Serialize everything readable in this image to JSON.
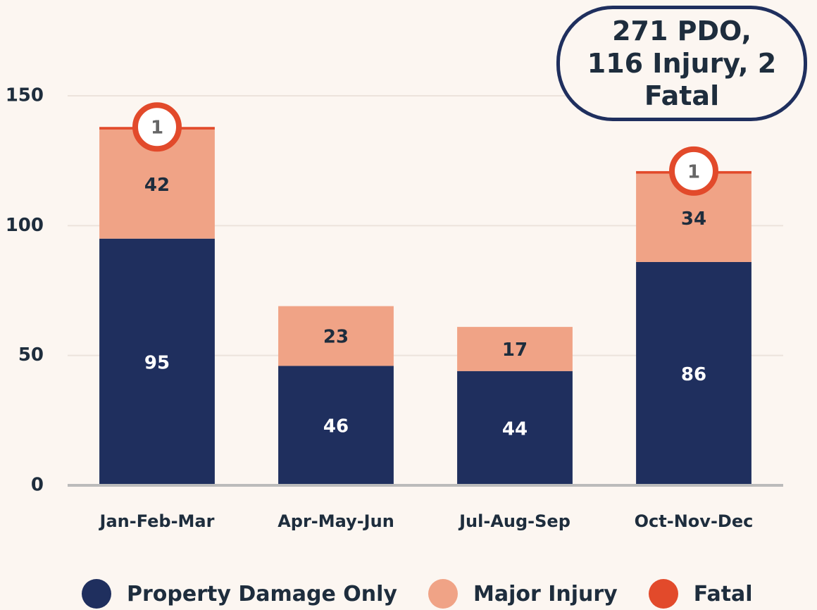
{
  "chart_data": {
    "type": "stacked_bar",
    "categories": [
      "Jan-Feb-Mar",
      "Apr-May-Jun",
      "Jul-Aug-Sep",
      "Oct-Nov-Dec"
    ],
    "series": [
      {
        "name": "Property Damage Only",
        "color": "#1f2f5e",
        "values": [
          95,
          46,
          44,
          86
        ]
      },
      {
        "name": "Major Injury",
        "color": "#f0a386",
        "values": [
          42,
          23,
          17,
          34
        ]
      },
      {
        "name": "Fatal",
        "color": "#e24a2b",
        "values": [
          1,
          null,
          null,
          1
        ]
      }
    ],
    "ylim": [
      0,
      150
    ],
    "yticks": [
      0,
      50,
      100,
      150
    ],
    "grid": true,
    "annotation": "271 PDO, 116 Injury, 2 Fatal",
    "legend": "bottom"
  }
}
